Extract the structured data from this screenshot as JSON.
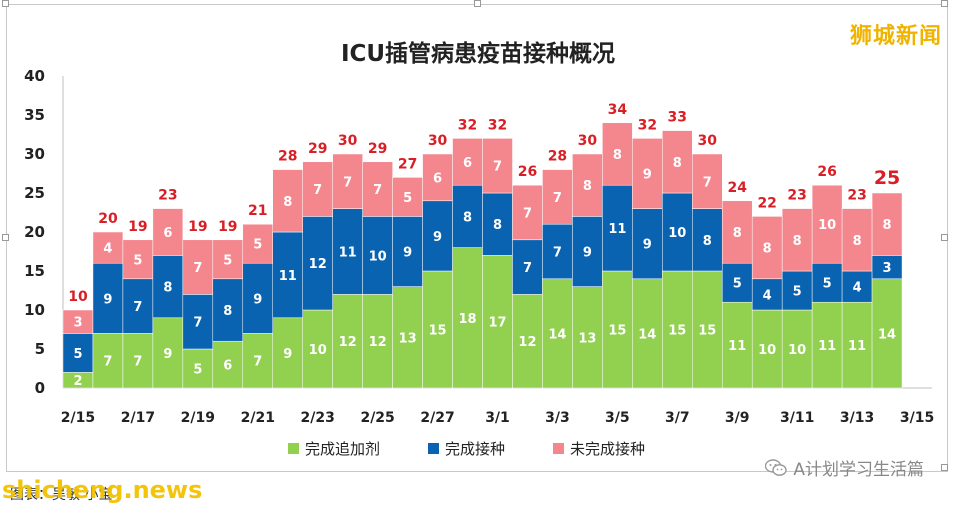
{
  "brand": "狮城新闻",
  "watermark": "shicheng.news",
  "source_text": "图表：吴敏 小宝",
  "wechat_text": "A计划学习生活篇",
  "chart_data": {
    "type": "bar",
    "stacked": true,
    "title": "ICU插管病患疫苗接种概况",
    "x": [
      "2/15",
      "2/16",
      "2/17",
      "2/18",
      "2/19",
      "2/20",
      "2/21",
      "2/22",
      "2/23",
      "2/24",
      "2/25",
      "2/26",
      "2/27",
      "2/28",
      "3/1",
      "3/2",
      "3/3",
      "3/4",
      "3/5",
      "3/6",
      "3/7",
      "3/8",
      "3/9",
      "3/10",
      "3/11",
      "3/12",
      "3/13",
      "3/14"
    ],
    "xtick_labels": [
      "2/15",
      "2/17",
      "2/19",
      "2/21",
      "2/23",
      "2/25",
      "2/27",
      "3/1",
      "3/3",
      "3/5",
      "3/7",
      "3/9",
      "3/11",
      "3/13",
      "3/15"
    ],
    "ylim": [
      0,
      40
    ],
    "yticks": [
      "0",
      "5",
      "10",
      "15",
      "20",
      "25",
      "30",
      "35",
      "40"
    ],
    "grid": false,
    "legend_position": "bottom",
    "series": [
      {
        "name": "完成追加剂",
        "color": "#92d050",
        "values": [
          2,
          7,
          7,
          9,
          5,
          6,
          7,
          9,
          10,
          12,
          12,
          13,
          15,
          18,
          17,
          12,
          14,
          13,
          15,
          14,
          15,
          15,
          11,
          10,
          10,
          11,
          11,
          14
        ]
      },
      {
        "name": "完成接种",
        "color": "#0a63b0",
        "values": [
          5,
          9,
          7,
          8,
          7,
          8,
          9,
          11,
          12,
          11,
          10,
          9,
          9,
          8,
          8,
          7,
          7,
          9,
          11,
          9,
          10,
          8,
          5,
          4,
          5,
          5,
          4,
          3
        ]
      },
      {
        "name": "未完成接种",
        "color": "#f4878e",
        "values": [
          3,
          4,
          5,
          6,
          7,
          5,
          5,
          8,
          7,
          7,
          7,
          5,
          6,
          6,
          7,
          7,
          7,
          8,
          8,
          9,
          8,
          7,
          8,
          8,
          8,
          10,
          8,
          8
        ]
      }
    ],
    "totals": [
      "10",
      "20",
      "19",
      "23",
      "19",
      "19",
      "21",
      "28",
      "29",
      "30",
      "29",
      "27",
      "30",
      "32",
      "32",
      "26",
      "28",
      "30",
      "34",
      "32",
      "33",
      "30",
      "24",
      "22",
      "23",
      "26",
      "23",
      "25"
    ]
  }
}
